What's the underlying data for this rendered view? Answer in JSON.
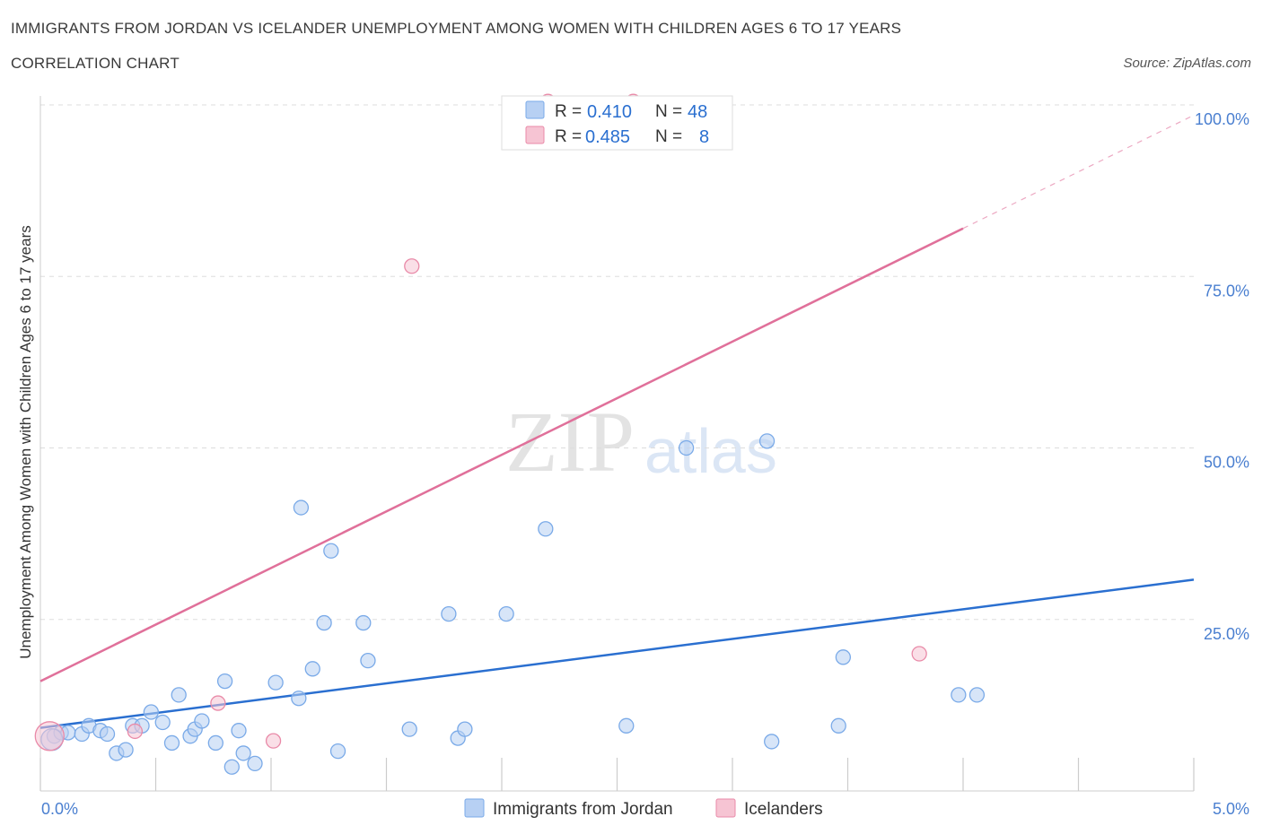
{
  "header": {
    "title": "IMMIGRANTS FROM JORDAN VS ICELANDER UNEMPLOYMENT AMONG WOMEN WITH CHILDREN AGES 6 TO 17 YEARS",
    "subtitle": "CORRELATION CHART",
    "source": "Source: ZipAtlas.com"
  },
  "watermark": {
    "zip": "ZIP",
    "atlas": "atlas"
  },
  "colors": {
    "blue": "#7aaae8",
    "blue_fill": "#b7d0f3",
    "blue_line": "#2a6fd0",
    "pink": "#e98aa8",
    "pink_fill": "#f6c4d3",
    "pink_line": "#e0709a",
    "grid": "#dddddd",
    "axis_text": "#4a7fd0"
  },
  "legend": {
    "row1": {
      "r_label": "R =",
      "r_value": "0.410",
      "n_label": "N =",
      "n_value": "48"
    },
    "row2": {
      "r_label": "R =",
      "r_value": "0.485",
      "n_label": "N =",
      "n_value": "8"
    }
  },
  "chart_data": {
    "type": "scatter",
    "title": "IMMIGRANTS FROM JORDAN VS ICELANDER UNEMPLOYMENT AMONG WOMEN WITH CHILDREN AGES 6 TO 17 YEARS",
    "xlabel": "",
    "ylabel": "Unemployment Among Women with Children Ages 6 to 17 years",
    "xlim": [
      0,
      5
    ],
    "ylim": [
      0,
      100
    ],
    "x_tick_labels": [
      "0.0%",
      "5.0%"
    ],
    "y_tick_labels": [
      "100.0%",
      "75.0%",
      "50.0%",
      "25.0%"
    ],
    "y_tick_values": [
      100,
      75,
      50,
      25
    ],
    "legend_position": "top-center",
    "series": [
      {
        "name": "Immigrants from Jordan",
        "color": "#7aaae8",
        "points": [
          [
            0.06,
            8.0
          ],
          [
            0.09,
            8.5
          ],
          [
            0.12,
            8.5
          ],
          [
            0.18,
            8.3
          ],
          [
            0.21,
            9.5
          ],
          [
            0.26,
            8.8
          ],
          [
            0.29,
            8.3
          ],
          [
            0.33,
            5.5
          ],
          [
            0.37,
            6.0
          ],
          [
            0.4,
            9.5
          ],
          [
            0.44,
            9.5
          ],
          [
            0.48,
            11.5
          ],
          [
            0.53,
            10.0
          ],
          [
            0.57,
            7.0
          ],
          [
            0.6,
            14.0
          ],
          [
            0.65,
            8.0
          ],
          [
            0.67,
            9.0
          ],
          [
            0.7,
            10.2
          ],
          [
            0.76,
            7.0
          ],
          [
            0.8,
            16.0
          ],
          [
            0.83,
            3.5
          ],
          [
            0.86,
            8.8
          ],
          [
            0.88,
            5.5
          ],
          [
            0.93,
            4.0
          ],
          [
            1.02,
            15.8
          ],
          [
            1.12,
            13.5
          ],
          [
            1.13,
            41.3
          ],
          [
            1.18,
            17.8
          ],
          [
            1.23,
            24.5
          ],
          [
            1.26,
            35.0
          ],
          [
            1.29,
            5.8
          ],
          [
            1.4,
            24.5
          ],
          [
            1.42,
            19.0
          ],
          [
            1.6,
            9.0
          ],
          [
            1.77,
            25.8
          ],
          [
            1.81,
            7.7
          ],
          [
            1.84,
            9.0
          ],
          [
            2.02,
            25.8
          ],
          [
            2.19,
            38.2
          ],
          [
            2.54,
            9.5
          ],
          [
            2.8,
            50.0
          ],
          [
            3.15,
            51.0
          ],
          [
            3.17,
            7.2
          ],
          [
            3.46,
            9.5
          ],
          [
            3.48,
            19.5
          ],
          [
            3.98,
            14.0
          ],
          [
            4.06,
            14.0
          ],
          [
            0.05,
            7.5
          ]
        ]
      },
      {
        "name": "Icelanders",
        "color": "#e98aa8",
        "points": [
          [
            0.04,
            8.0
          ],
          [
            0.41,
            8.7
          ],
          [
            0.77,
            12.8
          ],
          [
            1.01,
            7.3
          ],
          [
            1.61,
            76.5
          ],
          [
            2.2,
            100.5
          ],
          [
            2.57,
            100.5
          ],
          [
            3.81,
            20.0
          ]
        ]
      }
    ],
    "trendlines": [
      {
        "series": "Immigrants from Jordan",
        "from": [
          0,
          9.2
        ],
        "to": [
          5,
          30.8
        ],
        "dashed": false
      },
      {
        "series": "Icelanders",
        "from": [
          0,
          16.0
        ],
        "to": [
          4.0,
          82.0
        ],
        "dashed": false
      },
      {
        "series": "Icelanders",
        "from": [
          4.0,
          82.0
        ],
        "to": [
          5,
          98.5
        ],
        "dashed": true
      }
    ]
  },
  "bottom_legend": {
    "item1": "Immigrants from Jordan",
    "item2": "Icelanders"
  }
}
